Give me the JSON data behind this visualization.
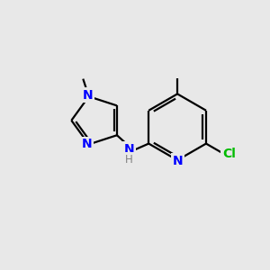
{
  "bg_color": "#e8e8e8",
  "bond_color": "#000000",
  "n_color": "#0000ff",
  "cl_color": "#00bb00",
  "h_color": "#808080",
  "line_width": 1.6,
  "figsize": [
    3.0,
    3.0
  ],
  "dpi": 100,
  "xlim": [
    0,
    10
  ],
  "ylim": [
    0,
    10
  ]
}
